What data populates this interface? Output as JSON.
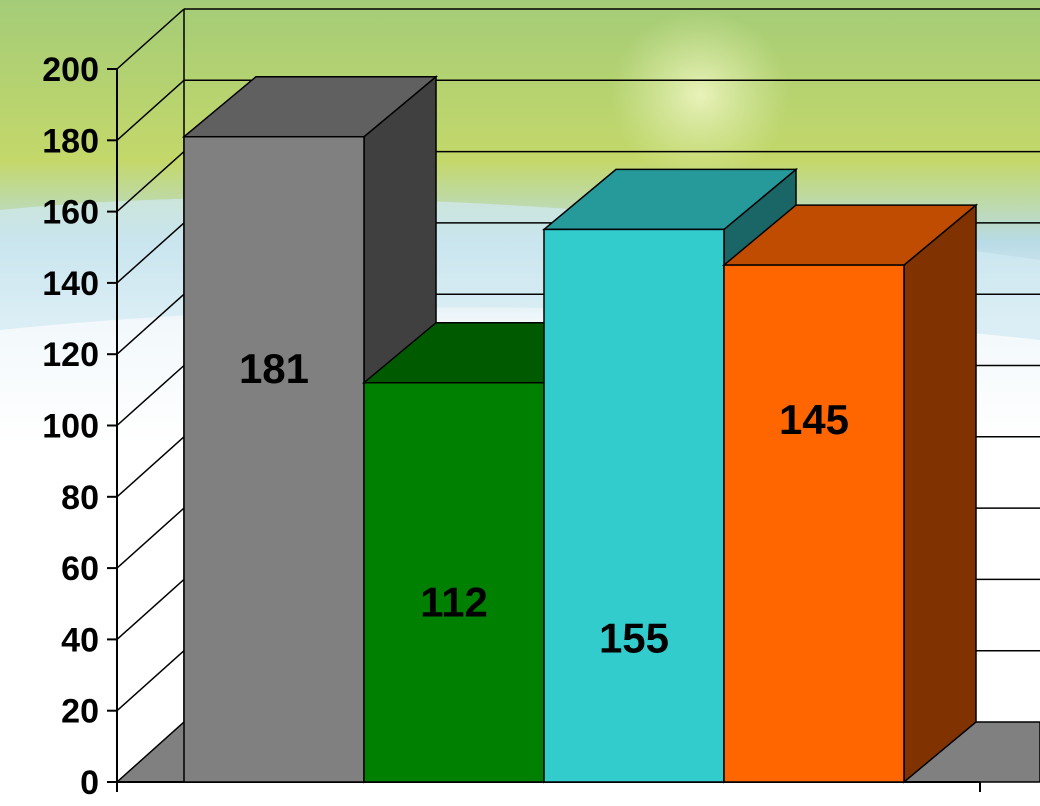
{
  "chart_data": {
    "type": "bar",
    "style": "3d-column",
    "categories": [
      "",
      "",
      "",
      ""
    ],
    "values": [
      181,
      112,
      155,
      145
    ],
    "data_labels": [
      "181",
      "112",
      "155",
      "145"
    ],
    "ylim": [
      0,
      200
    ],
    "y_ticks": [
      "0",
      "20",
      "40",
      "60",
      "80",
      "100",
      "120",
      "140",
      "160",
      "180",
      "200"
    ],
    "grid": true,
    "legend": "none",
    "title": "",
    "xlabel": "",
    "ylabel": "",
    "colors": {
      "front": [
        "#808080",
        "#008000",
        "#33CCCC",
        "#FF6600"
      ],
      "top": [
        "#606060",
        "#005A00",
        "#269A9A",
        "#BF4C00"
      ],
      "side": [
        "#404040",
        "#003C00",
        "#1A6666",
        "#803300"
      ],
      "floor": "#808080"
    }
  }
}
